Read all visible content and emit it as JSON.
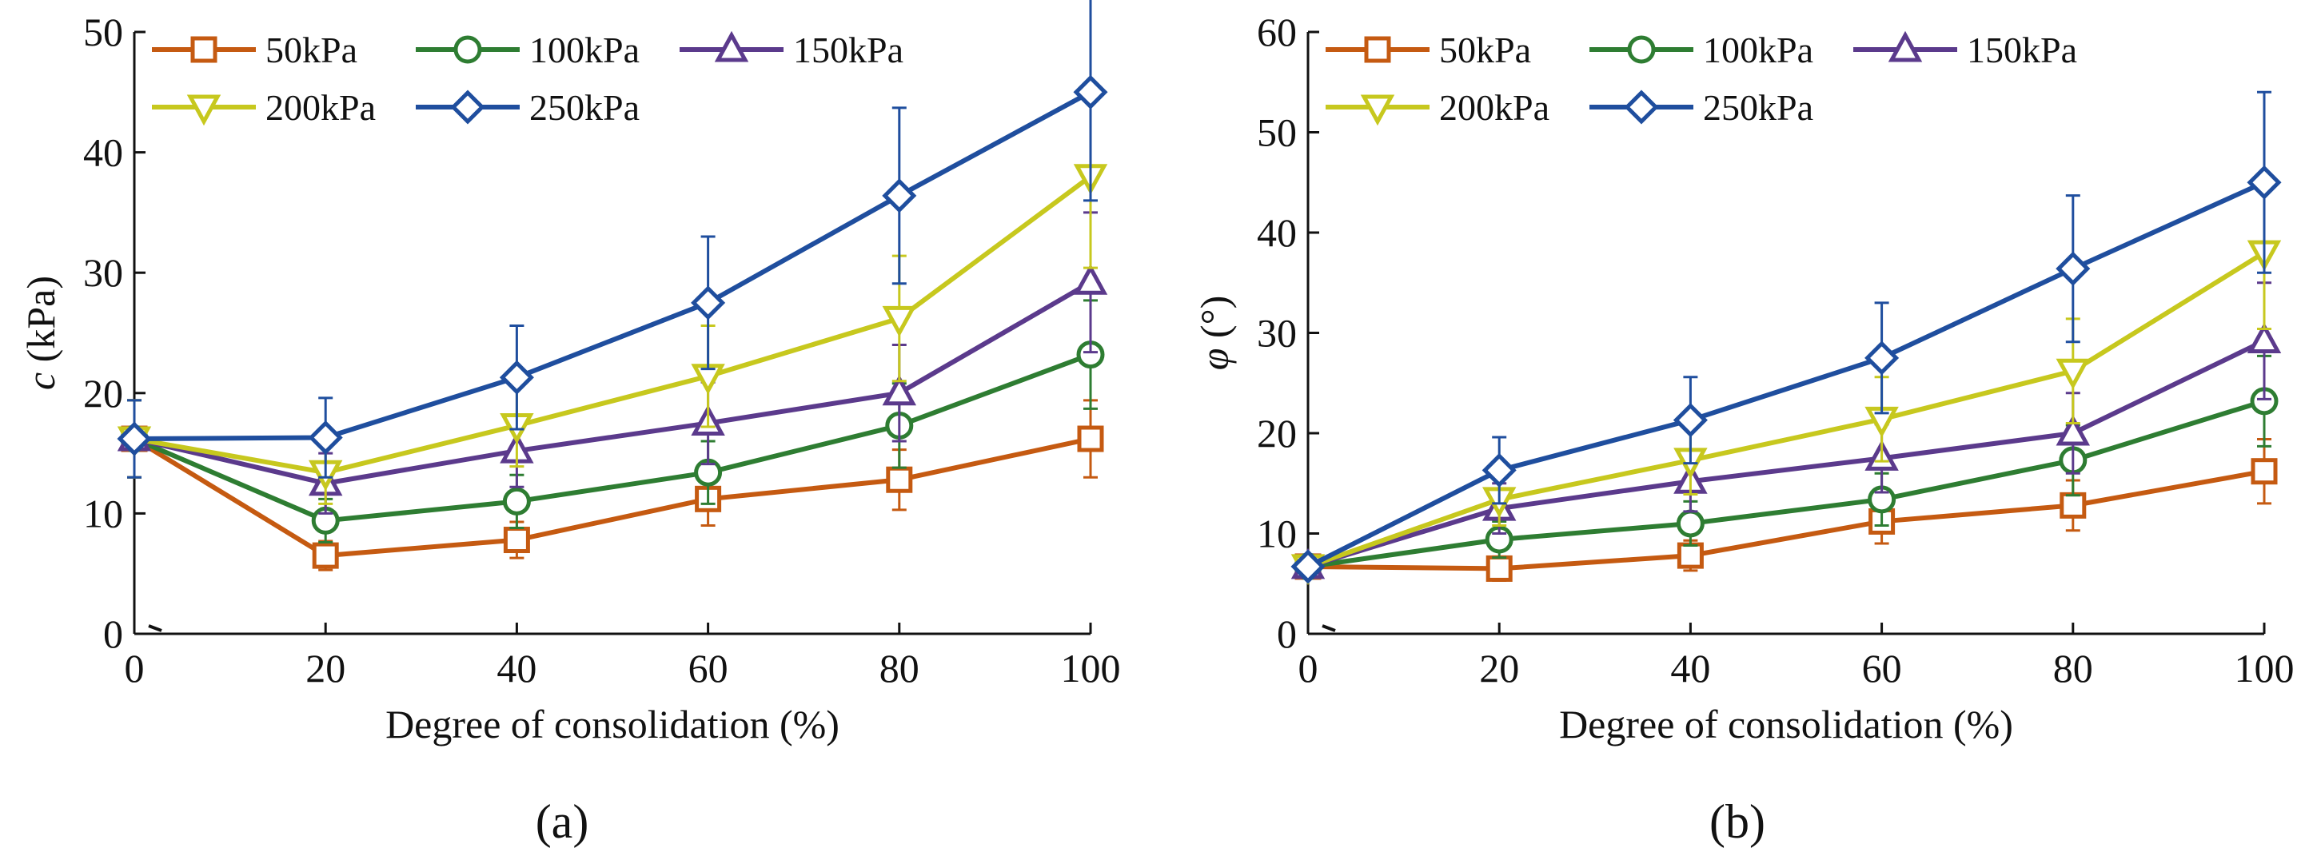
{
  "figure": {
    "panel_labels": [
      "(a)",
      "(b)"
    ]
  },
  "colors": {
    "50kPa": "#C55A11",
    "100kPa": "#2E7D32",
    "150kPa": "#5B3A8C",
    "200kPa": "#C7C81E",
    "250kPa": "#1F4E9E",
    "axis": "#111111"
  },
  "chart_data": [
    {
      "type": "line",
      "panel": "(a)",
      "title": "",
      "xlabel": "Degree of consolidation (%)",
      "ylabel_italic": "c",
      "ylabel_rest": " (kPa)",
      "x": [
        0,
        20,
        40,
        60,
        80,
        100
      ],
      "xlim": [
        0,
        100
      ],
      "ylim": [
        0,
        50
      ],
      "xticks": [
        "0",
        "20",
        "40",
        "60",
        "80",
        "100"
      ],
      "yticks": [
        "0",
        "10",
        "20",
        "30",
        "40",
        "50"
      ],
      "legend_position": "top-left",
      "series": [
        {
          "name": "50kPa",
          "marker": "square",
          "values": [
            16.2,
            6.5,
            7.8,
            11.2,
            12.8,
            16.2
          ],
          "errors": [
            3.2,
            1.2,
            1.5,
            2.2,
            2.5,
            3.2
          ]
        },
        {
          "name": "100kPa",
          "marker": "circle",
          "values": [
            16.2,
            9.4,
            11.0,
            13.4,
            17.3,
            23.2
          ],
          "errors": [
            3.2,
            1.8,
            2.2,
            2.6,
            3.5,
            4.5
          ]
        },
        {
          "name": "150kPa",
          "marker": "triangle-up",
          "values": [
            16.2,
            12.5,
            15.2,
            17.5,
            20.0,
            29.2
          ],
          "errors": [
            3.2,
            2.5,
            3.0,
            3.4,
            4.0,
            5.8
          ]
        },
        {
          "name": "200kPa",
          "marker": "triangle-down",
          "values": [
            16.2,
            13.4,
            17.3,
            21.4,
            26.2,
            38.0
          ],
          "errors": [
            3.2,
            2.6,
            3.4,
            4.2,
            5.2,
            7.6
          ]
        },
        {
          "name": "250kPa",
          "marker": "diamond",
          "values": [
            16.2,
            16.3,
            21.3,
            27.5,
            36.4,
            45.0
          ],
          "errors": [
            3.2,
            3.3,
            4.3,
            5.5,
            7.3,
            9.0
          ]
        }
      ]
    },
    {
      "type": "line",
      "panel": "(b)",
      "title": "",
      "xlabel": "Degree of consolidation (%)",
      "ylabel_italic": "φ",
      "ylabel_rest": " (°)",
      "x": [
        0,
        20,
        40,
        60,
        80,
        100
      ],
      "xlim": [
        0,
        100
      ],
      "ylim": [
        0,
        60
      ],
      "xticks": [
        "0",
        "20",
        "40",
        "60",
        "80",
        "100"
      ],
      "yticks": [
        "0",
        "10",
        "20",
        "30",
        "40",
        "50",
        "60"
      ],
      "legend_position": "top-left",
      "series": [
        {
          "name": "50kPa",
          "marker": "square",
          "values": [
            6.7,
            6.5,
            7.8,
            11.2,
            12.8,
            16.2
          ],
          "errors": [
            0.6,
            1.2,
            1.5,
            2.2,
            2.5,
            3.2
          ]
        },
        {
          "name": "100kPa",
          "marker": "circle",
          "values": [
            6.7,
            9.4,
            11.0,
            13.4,
            17.3,
            23.2
          ],
          "errors": [
            0.6,
            1.8,
            2.2,
            2.6,
            3.5,
            4.5
          ]
        },
        {
          "name": "150kPa",
          "marker": "triangle-up",
          "values": [
            6.7,
            12.5,
            15.2,
            17.5,
            20.0,
            29.2
          ],
          "errors": [
            0.6,
            2.5,
            3.0,
            3.4,
            4.0,
            5.8
          ]
        },
        {
          "name": "200kPa",
          "marker": "triangle-down",
          "values": [
            6.7,
            13.4,
            17.3,
            21.4,
            26.2,
            38.0
          ],
          "errors": [
            0.6,
            2.6,
            3.4,
            4.2,
            5.2,
            7.6
          ]
        },
        {
          "name": "250kPa",
          "marker": "diamond",
          "values": [
            6.7,
            16.3,
            21.3,
            27.5,
            36.4,
            45.0
          ],
          "errors": [
            0.6,
            3.3,
            4.3,
            5.5,
            7.3,
            9.0
          ]
        }
      ]
    }
  ]
}
